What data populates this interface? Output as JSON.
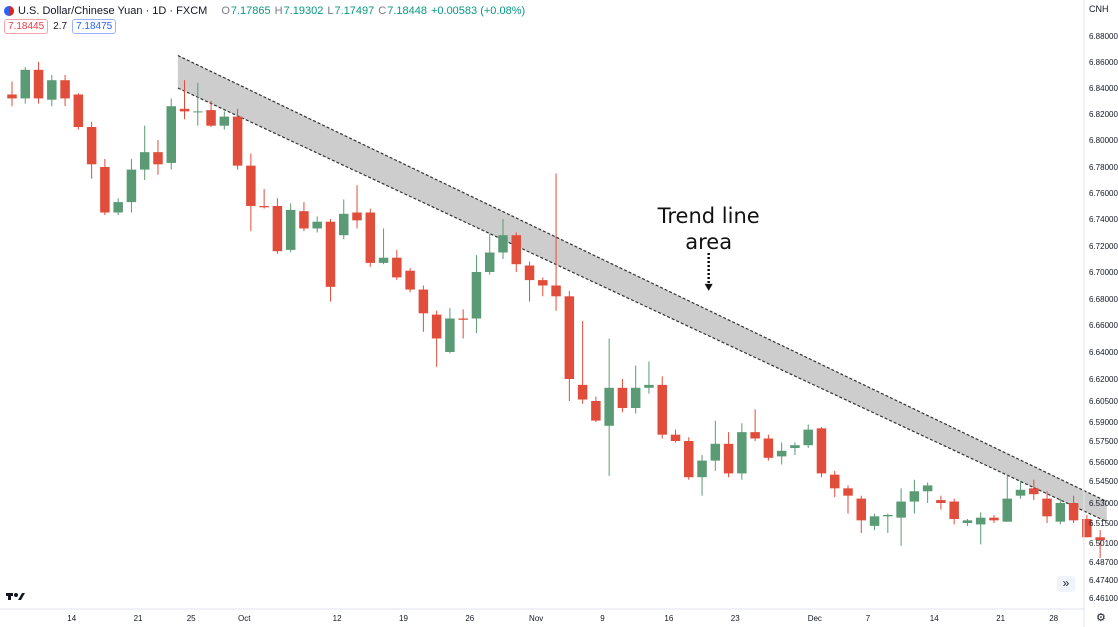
{
  "header": {
    "symbol": "U.S. Dollar/Chinese Yuan · 1D · FXCM",
    "open_label": "O",
    "open": "7.17865",
    "high_label": "H",
    "high": "7.19302",
    "low_label": "L",
    "low": "7.17497",
    "close_label": "C",
    "close": "7.18448",
    "change": "+0.00583 (+0.08%)",
    "sell_price": "7.18445",
    "spread": "2.7",
    "buy_price": "7.18475"
  },
  "currency_label": "CNH",
  "scroll_label": "»",
  "settings_icon": "gear-icon",
  "colors": {
    "up": "#5a9b75",
    "down": "#e04d3b",
    "band_fill": "#c4c4c4",
    "line": "#333333"
  },
  "chart_data": {
    "type": "candlestick",
    "y_ticks": [
      6.88,
      6.86,
      6.84,
      6.82,
      6.8,
      6.78,
      6.76,
      6.74,
      6.72,
      6.7,
      6.68,
      6.66,
      6.64,
      6.62,
      6.605,
      6.59,
      6.575,
      6.56,
      6.545,
      6.53,
      6.515,
      6.501,
      6.487,
      6.474,
      6.461
    ],
    "y_tick_labels": [
      "6.88000",
      "6.86000",
      "6.84000",
      "6.82000",
      "6.80000",
      "6.78000",
      "6.76000",
      "6.74000",
      "6.72000",
      "6.70000",
      "6.68000",
      "6.66000",
      "6.64000",
      "6.62000",
      "6.60500",
      "6.59000",
      "6.57500",
      "6.56000",
      "6.54500",
      "6.53000",
      "6.51500",
      "6.50100",
      "6.48700",
      "6.47400",
      "6.46100"
    ],
    "x_ticks": [
      {
        "label": "14",
        "index": 4.5
      },
      {
        "label": "21",
        "index": 9.5
      },
      {
        "label": "25",
        "index": 13.5
      },
      {
        "label": "Oct",
        "index": 17.5
      },
      {
        "label": "12",
        "index": 24.5
      },
      {
        "label": "19",
        "index": 29.5
      },
      {
        "label": "26",
        "index": 34.5
      },
      {
        "label": "Nov",
        "index": 39.5
      },
      {
        "label": "9",
        "index": 44.5
      },
      {
        "label": "16",
        "index": 49.5
      },
      {
        "label": "23",
        "index": 54.5
      },
      {
        "label": "Dec",
        "index": 60.5
      },
      {
        "label": "7",
        "index": 64.5
      },
      {
        "label": "14",
        "index": 69.5
      },
      {
        "label": "21",
        "index": 74.5
      },
      {
        "label": "28",
        "index": 78.5
      }
    ],
    "candles": [
      {
        "o": 6.835,
        "h": 6.845,
        "l": 6.826,
        "c": 6.832
      },
      {
        "o": 6.832,
        "h": 6.856,
        "l": 6.828,
        "c": 6.854
      },
      {
        "o": 6.854,
        "h": 6.86,
        "l": 6.828,
        "c": 6.832
      },
      {
        "o": 6.831,
        "h": 6.85,
        "l": 6.826,
        "c": 6.846
      },
      {
        "o": 6.846,
        "h": 6.85,
        "l": 6.826,
        "c": 6.832
      },
      {
        "o": 6.835,
        "h": 6.836,
        "l": 6.808,
        "c": 6.81
      },
      {
        "o": 6.81,
        "h": 6.814,
        "l": 6.771,
        "c": 6.782
      },
      {
        "o": 6.78,
        "h": 6.786,
        "l": 6.743,
        "c": 6.745
      },
      {
        "o": 6.745,
        "h": 6.756,
        "l": 6.743,
        "c": 6.753
      },
      {
        "o": 6.753,
        "h": 6.786,
        "l": 6.745,
        "c": 6.778
      },
      {
        "o": 6.778,
        "h": 6.811,
        "l": 6.77,
        "c": 6.791
      },
      {
        "o": 6.791,
        "h": 6.8,
        "l": 6.774,
        "c": 6.782
      },
      {
        "o": 6.783,
        "h": 6.832,
        "l": 6.778,
        "c": 6.826
      },
      {
        "o": 6.824,
        "h": 6.846,
        "l": 6.816,
        "c": 6.822
      },
      {
        "o": 6.822,
        "h": 6.844,
        "l": 6.811,
        "c": 6.822
      },
      {
        "o": 6.823,
        "h": 6.83,
        "l": 6.81,
        "c": 6.811
      },
      {
        "o": 6.811,
        "h": 6.822,
        "l": 6.808,
        "c": 6.818
      },
      {
        "o": 6.818,
        "h": 6.824,
        "l": 6.778,
        "c": 6.781
      },
      {
        "o": 6.781,
        "h": 6.79,
        "l": 6.731,
        "c": 6.75
      },
      {
        "o": 6.75,
        "h": 6.763,
        "l": 6.748,
        "c": 6.749
      },
      {
        "o": 6.75,
        "h": 6.756,
        "l": 6.714,
        "c": 6.716
      },
      {
        "o": 6.717,
        "h": 6.752,
        "l": 6.715,
        "c": 6.747
      },
      {
        "o": 6.746,
        "h": 6.753,
        "l": 6.731,
        "c": 6.733
      },
      {
        "o": 6.733,
        "h": 6.742,
        "l": 6.73,
        "c": 6.738
      },
      {
        "o": 6.738,
        "h": 6.74,
        "l": 6.678,
        "c": 6.689
      },
      {
        "o": 6.728,
        "h": 6.755,
        "l": 6.725,
        "c": 6.744
      },
      {
        "o": 6.745,
        "h": 6.766,
        "l": 6.733,
        "c": 6.739
      },
      {
        "o": 6.745,
        "h": 6.748,
        "l": 6.704,
        "c": 6.707
      },
      {
        "o": 6.707,
        "h": 6.733,
        "l": 6.706,
        "c": 6.711
      },
      {
        "o": 6.711,
        "h": 6.717,
        "l": 6.694,
        "c": 6.696
      },
      {
        "o": 6.701,
        "h": 6.703,
        "l": 6.685,
        "c": 6.687
      },
      {
        "o": 6.687,
        "h": 6.69,
        "l": 6.655,
        "c": 6.669
      },
      {
        "o": 6.668,
        "h": 6.671,
        "l": 6.629,
        "c": 6.65
      },
      {
        "o": 6.64,
        "h": 6.673,
        "l": 6.639,
        "c": 6.665
      },
      {
        "o": 6.665,
        "h": 6.672,
        "l": 6.65,
        "c": 6.664
      },
      {
        "o": 6.665,
        "h": 6.713,
        "l": 6.654,
        "c": 6.7
      },
      {
        "o": 6.7,
        "h": 6.729,
        "l": 6.698,
        "c": 6.715
      },
      {
        "o": 6.715,
        "h": 6.74,
        "l": 6.71,
        "c": 6.728
      },
      {
        "o": 6.728,
        "h": 6.73,
        "l": 6.7,
        "c": 6.706
      },
      {
        "o": 6.705,
        "h": 6.708,
        "l": 6.678,
        "c": 6.694
      },
      {
        "o": 6.694,
        "h": 6.696,
        "l": 6.682,
        "c": 6.69
      },
      {
        "o": 6.69,
        "h": 6.775,
        "l": 6.671,
        "c": 6.682
      },
      {
        "o": 6.682,
        "h": 6.686,
        "l": 6.605,
        "c": 6.62
      },
      {
        "o": 6.616,
        "h": 6.663,
        "l": 6.603,
        "c": 6.606
      },
      {
        "o": 6.605,
        "h": 6.608,
        "l": 6.59,
        "c": 6.591
      },
      {
        "o": 6.587,
        "h": 6.65,
        "l": 6.549,
        "c": 6.614
      },
      {
        "o": 6.614,
        "h": 6.62,
        "l": 6.597,
        "c": 6.6
      },
      {
        "o": 6.6,
        "h": 6.63,
        "l": 6.596,
        "c": 6.614
      },
      {
        "o": 6.614,
        "h": 6.633,
        "l": 6.61,
        "c": 6.616
      },
      {
        "o": 6.616,
        "h": 6.622,
        "l": 6.577,
        "c": 6.58
      },
      {
        "o": 6.58,
        "h": 6.584,
        "l": 6.574,
        "c": 6.575
      },
      {
        "o": 6.575,
        "h": 6.578,
        "l": 6.546,
        "c": 6.548
      },
      {
        "o": 6.548,
        "h": 6.565,
        "l": 6.535,
        "c": 6.561
      },
      {
        "o": 6.561,
        "h": 6.591,
        "l": 6.553,
        "c": 6.573
      },
      {
        "o": 6.573,
        "h": 6.582,
        "l": 6.548,
        "c": 6.551
      },
      {
        "o": 6.551,
        "h": 6.589,
        "l": 6.546,
        "c": 6.582
      },
      {
        "o": 6.582,
        "h": 6.599,
        "l": 6.575,
        "c": 6.577
      },
      {
        "o": 6.577,
        "h": 6.58,
        "l": 6.561,
        "c": 6.563
      },
      {
        "o": 6.564,
        "h": 6.574,
        "l": 6.558,
        "c": 6.568
      },
      {
        "o": 6.57,
        "h": 6.574,
        "l": 6.565,
        "c": 6.572
      },
      {
        "o": 6.572,
        "h": 6.588,
        "l": 6.57,
        "c": 6.584
      },
      {
        "o": 6.585,
        "h": 6.586,
        "l": 6.548,
        "c": 6.551
      },
      {
        "o": 6.55,
        "h": 6.553,
        "l": 6.534,
        "c": 6.54
      },
      {
        "o": 6.54,
        "h": 6.542,
        "l": 6.522,
        "c": 6.535
      },
      {
        "o": 6.533,
        "h": 6.535,
        "l": 6.508,
        "c": 6.517
      },
      {
        "o": 6.513,
        "h": 6.522,
        "l": 6.51,
        "c": 6.52
      },
      {
        "o": 6.52,
        "h": 6.522,
        "l": 6.508,
        "c": 6.521
      },
      {
        "o": 6.519,
        "h": 6.54,
        "l": 6.499,
        "c": 6.531
      },
      {
        "o": 6.531,
        "h": 6.546,
        "l": 6.522,
        "c": 6.538
      },
      {
        "o": 6.538,
        "h": 6.544,
        "l": 6.53,
        "c": 6.542
      },
      {
        "o": 6.532,
        "h": 6.535,
        "l": 6.525,
        "c": 6.53
      },
      {
        "o": 6.531,
        "h": 6.533,
        "l": 6.514,
        "c": 6.518
      },
      {
        "o": 6.515,
        "h": 6.518,
        "l": 6.513,
        "c": 6.517
      },
      {
        "o": 6.514,
        "h": 6.523,
        "l": 6.5,
        "c": 6.519
      },
      {
        "o": 6.519,
        "h": 6.521,
        "l": 6.515,
        "c": 6.517
      },
      {
        "o": 6.516,
        "h": 6.55,
        "l": 6.516,
        "c": 6.533
      },
      {
        "o": 6.535,
        "h": 6.545,
        "l": 6.533,
        "c": 6.539
      },
      {
        "o": 6.54,
        "h": 6.546,
        "l": 6.532,
        "c": 6.536
      },
      {
        "o": 6.533,
        "h": 6.538,
        "l": 6.515,
        "c": 6.52
      },
      {
        "o": 6.516,
        "h": 6.533,
        "l": 6.514,
        "c": 6.53
      },
      {
        "o": 6.53,
        "h": 6.535,
        "l": 6.515,
        "c": 6.517
      },
      {
        "o": 6.518,
        "h": 6.521,
        "l": 6.505,
        "c": 6.505
      },
      {
        "o": 6.505,
        "h": 6.51,
        "l": 6.49,
        "c": 6.503
      }
    ],
    "trend_band": {
      "upper": [
        {
          "index": 12.5,
          "price": 6.865
        },
        {
          "index": 82.5,
          "price": 6.531
        }
      ],
      "lower": [
        {
          "index": 12.5,
          "price": 6.84
        },
        {
          "index": 82.5,
          "price": 6.516
        }
      ]
    },
    "annotation": {
      "text_line1": "Trend line",
      "text_line2": "area",
      "arrow_index": 52.5,
      "arrow_price": 6.686
    }
  }
}
